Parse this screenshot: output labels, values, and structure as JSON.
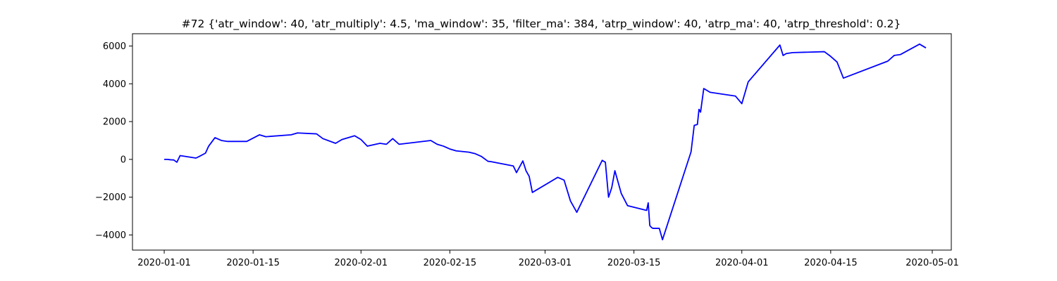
{
  "chart_data": {
    "type": "line",
    "title": "#72 {'atr_window': 40, 'atr_multiply': 4.5, 'ma_window': 35, 'filter_ma': 384, 'atrp_window': 40, 'atrp_ma': 40, 'atrp_threshold': 0.2}",
    "xlabel": "",
    "ylabel": "",
    "x_axis_type": "date",
    "xlim": [
      "2019-12-27",
      "2020-05-04"
    ],
    "ylim": [
      -4800,
      6650
    ],
    "x_ticks": [
      "2020-01-01",
      "2020-01-15",
      "2020-02-01",
      "2020-02-15",
      "2020-03-01",
      "2020-03-15",
      "2020-04-01",
      "2020-04-15",
      "2020-05-01"
    ],
    "y_ticks": [
      -4000,
      -2000,
      0,
      2000,
      4000,
      6000
    ],
    "y_tick_labels": [
      "−4000",
      "−2000",
      "0",
      "2000",
      "4000",
      "6000"
    ],
    "grid": false,
    "legend": "none",
    "line_color": "#0000ff",
    "series": [
      {
        "x": [
          "2020-01-01",
          "2020-01-01 12:00",
          "2020-01-02",
          "2020-01-02 12:00",
          "2020-01-03",
          "2020-01-03 12:00",
          "2020-01-06",
          "2020-01-06 12:00",
          "2020-01-07 12:00",
          "2020-01-08",
          "2020-01-09",
          "2020-01-10",
          "2020-01-11",
          "2020-01-14",
          "2020-01-16",
          "2020-01-17",
          "2020-01-21",
          "2020-01-22",
          "2020-01-25",
          "2020-01-26",
          "2020-01-28",
          "2020-01-29",
          "2020-01-31",
          "2020-02-01",
          "2020-02-02",
          "2020-02-04",
          "2020-02-05",
          "2020-02-06",
          "2020-02-07",
          "2020-02-12",
          "2020-02-13",
          "2020-02-14",
          "2020-02-15",
          "2020-02-16",
          "2020-02-18",
          "2020-02-19",
          "2020-02-20",
          "2020-02-21",
          "2020-02-21 12:00",
          "2020-02-25",
          "2020-02-25 12:00",
          "2020-02-26 12:00",
          "2020-02-27",
          "2020-02-27 12:00",
          "2020-02-28",
          "2020-03-03",
          "2020-03-04",
          "2020-03-05",
          "2020-03-06",
          "2020-03-10",
          "2020-03-10 12:00",
          "2020-03-11",
          "2020-03-11 12:00",
          "2020-03-12",
          "2020-03-13",
          "2020-03-14",
          "2020-03-17",
          "2020-03-17 06:00",
          "2020-03-17 12:00",
          "2020-03-17 18:00",
          "2020-03-18",
          "2020-03-19",
          "2020-03-19 12:00",
          "2020-03-24",
          "2020-03-24 12:00",
          "2020-03-25",
          "2020-03-25 06:00",
          "2020-03-25 12:00",
          "2020-03-26",
          "2020-03-27",
          "2020-03-31",
          "2020-04-01",
          "2020-04-02",
          "2020-04-07",
          "2020-04-07 12:00",
          "2020-04-08",
          "2020-04-09",
          "2020-04-14",
          "2020-04-15",
          "2020-04-16",
          "2020-04-17",
          "2020-04-24",
          "2020-04-25",
          "2020-04-26",
          "2020-04-29",
          "2020-04-30"
        ],
        "y": [
          0,
          0,
          -20,
          -30,
          -150,
          200,
          70,
          150,
          330,
          700,
          1150,
          1000,
          950,
          950,
          1300,
          1200,
          1300,
          1400,
          1350,
          1100,
          850,
          1050,
          1250,
          1050,
          700,
          850,
          800,
          1100,
          800,
          1000,
          800,
          700,
          550,
          450,
          380,
          300,
          150,
          -100,
          -120,
          -350,
          -700,
          -80,
          -600,
          -900,
          -1750,
          -950,
          -1100,
          -2200,
          -2800,
          -50,
          -150,
          -2000,
          -1500,
          -600,
          -1800,
          -2450,
          -2700,
          -2300,
          -3500,
          -3600,
          -3650,
          -3650,
          -4250,
          400,
          1800,
          1850,
          2650,
          2500,
          3750,
          3550,
          3350,
          2950,
          4100,
          6050,
          5500,
          5600,
          5650,
          5700,
          5450,
          5150,
          4300,
          5200,
          5500,
          5550,
          6100,
          5900
        ]
      }
    ]
  }
}
